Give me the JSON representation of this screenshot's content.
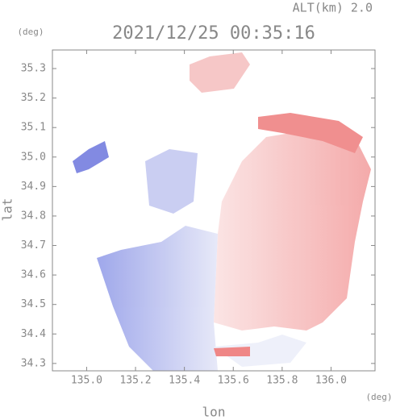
{
  "chart_data": {
    "type": "map",
    "altitude_label": "ALT(km) 2.0",
    "title": "2021/12/25 00:35:16",
    "y_unit": "(deg)",
    "x_unit": "(deg)",
    "y_label": "lat",
    "x_label": "lon",
    "xlim": [
      134.86,
      136.18
    ],
    "ylim": [
      34.275,
      35.363
    ],
    "xticks": [
      {
        "value": 135.0,
        "label": "135.0"
      },
      135.2,
      135.4,
      135.6,
      135.8,
      {
        "value": 136.0,
        "label": "136.0"
      }
    ],
    "yticks": [
      34.3,
      34.4,
      34.5,
      34.6,
      34.7,
      34.8,
      34.9,
      {
        "value": 35.0,
        "label": "35.0"
      },
      35.1,
      35.2,
      35.3
    ]
  }
}
